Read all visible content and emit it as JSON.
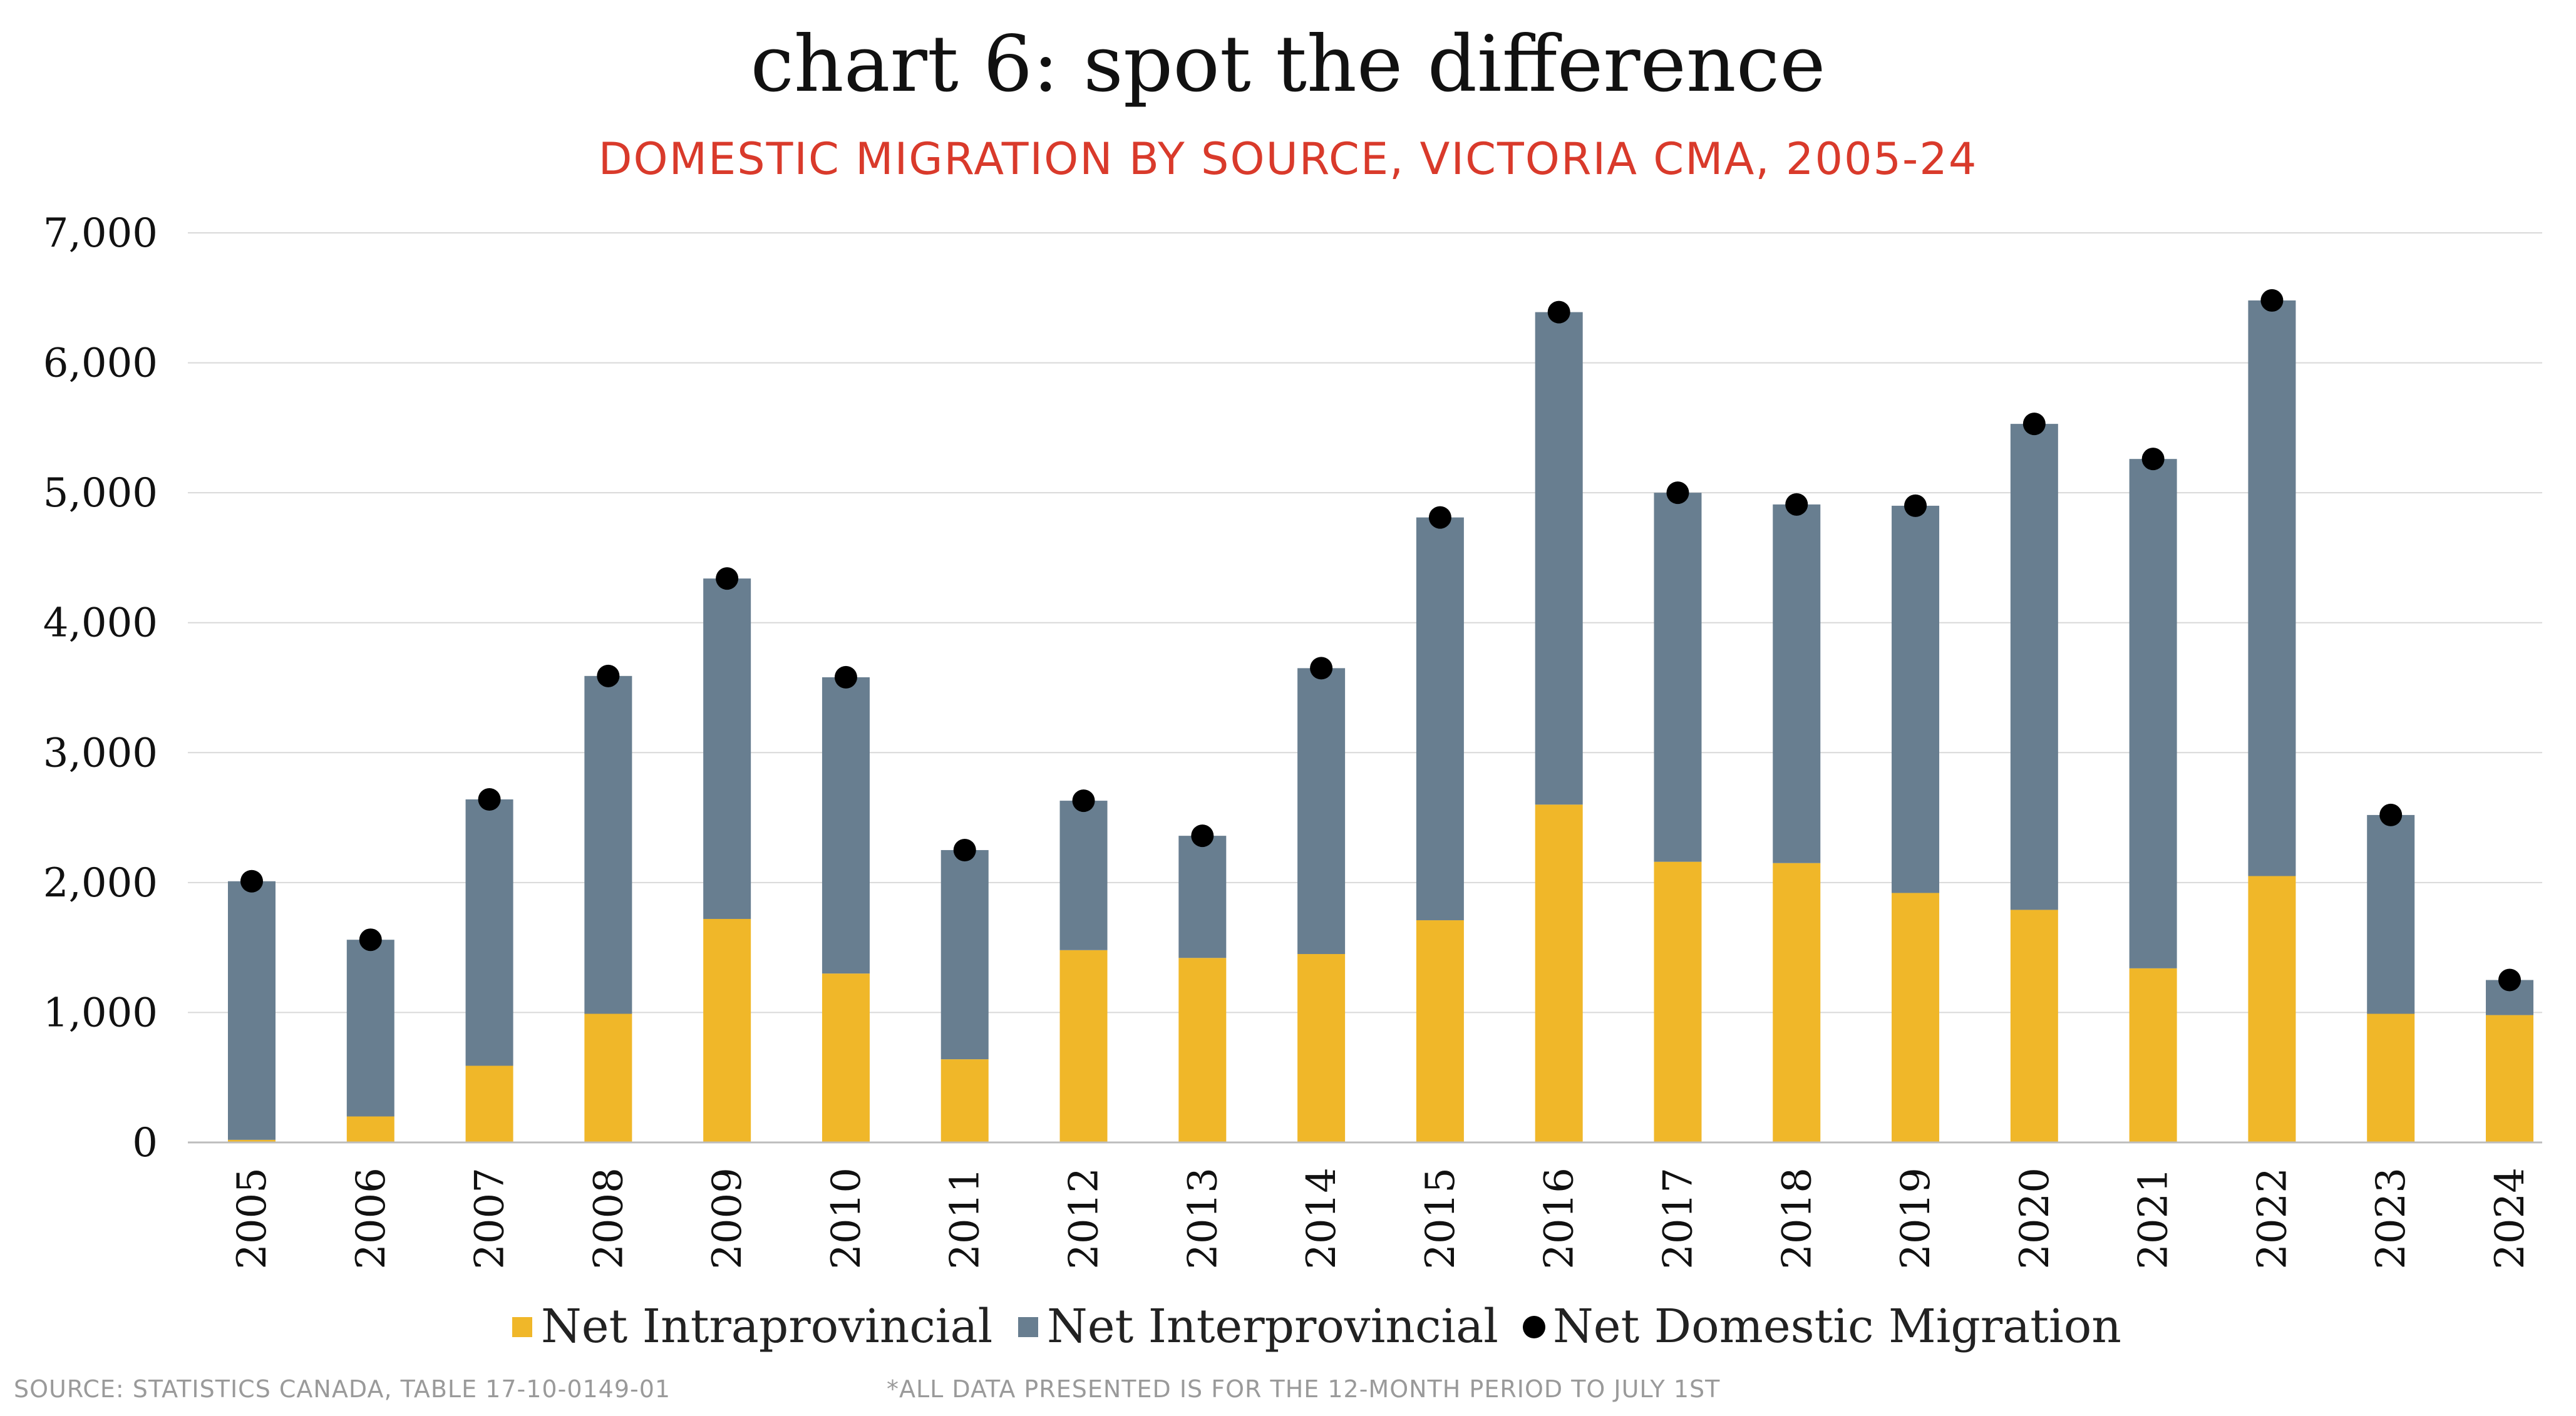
{
  "colors": {
    "intraprovincial": "#F0B729",
    "interprovincial": "#687E90",
    "net_domestic": "#000000",
    "subtitle": "#D93A2B",
    "footer": "#9A9A9A",
    "grid": "#D9D9D9"
  },
  "chart_data": {
    "type": "bar",
    "stacked": true,
    "title": "chart 6: spot the difference",
    "subtitle": "DOMESTIC MIGRATION BY SOURCE, VICTORIA CMA, 2005-24",
    "categories": [
      "2005",
      "2006",
      "2007",
      "2008",
      "2009",
      "2010",
      "2011",
      "2012",
      "2013",
      "2014",
      "2015",
      "2016",
      "2017",
      "2018",
      "2019",
      "2020",
      "2021",
      "2022",
      "2023",
      "2024"
    ],
    "series": [
      {
        "name": "Net Intraprovincial",
        "kind": "bar",
        "values": [
          20,
          200,
          590,
          990,
          1720,
          1300,
          640,
          1480,
          1420,
          1450,
          1710,
          2600,
          2160,
          2150,
          1920,
          1790,
          1340,
          2050,
          990,
          980
        ]
      },
      {
        "name": "Net Interprovincial",
        "kind": "bar",
        "values": [
          1990,
          1360,
          2050,
          2600,
          2620,
          2280,
          1610,
          1150,
          940,
          2200,
          3100,
          3790,
          2840,
          2760,
          2980,
          3740,
          3920,
          4430,
          1530,
          270
        ]
      },
      {
        "name": "Net Domestic Migration",
        "kind": "point",
        "values": [
          2010,
          1560,
          2640,
          3590,
          4340,
          3580,
          2250,
          2630,
          2360,
          3650,
          4810,
          6390,
          5000,
          4910,
          4900,
          5530,
          5260,
          6480,
          2520,
          1250
        ]
      }
    ],
    "ylim": [
      0,
      7000
    ],
    "yticks": [
      "0",
      "1,000",
      "2,000",
      "3,000",
      "4,000",
      "5,000",
      "6,000",
      "7,000"
    ],
    "ytick_values": [
      0,
      1000,
      2000,
      3000,
      4000,
      5000,
      6000,
      7000
    ],
    "grid": true,
    "legend_position": "bottom",
    "xlabel": "",
    "ylabel": ""
  },
  "footer": {
    "source": "SOURCE: STATISTICS CANADA, TABLE 17-10-0149-01",
    "note": "*ALL DATA PRESENTED IS FOR THE 12-MONTH PERIOD TO JULY 1ST"
  }
}
